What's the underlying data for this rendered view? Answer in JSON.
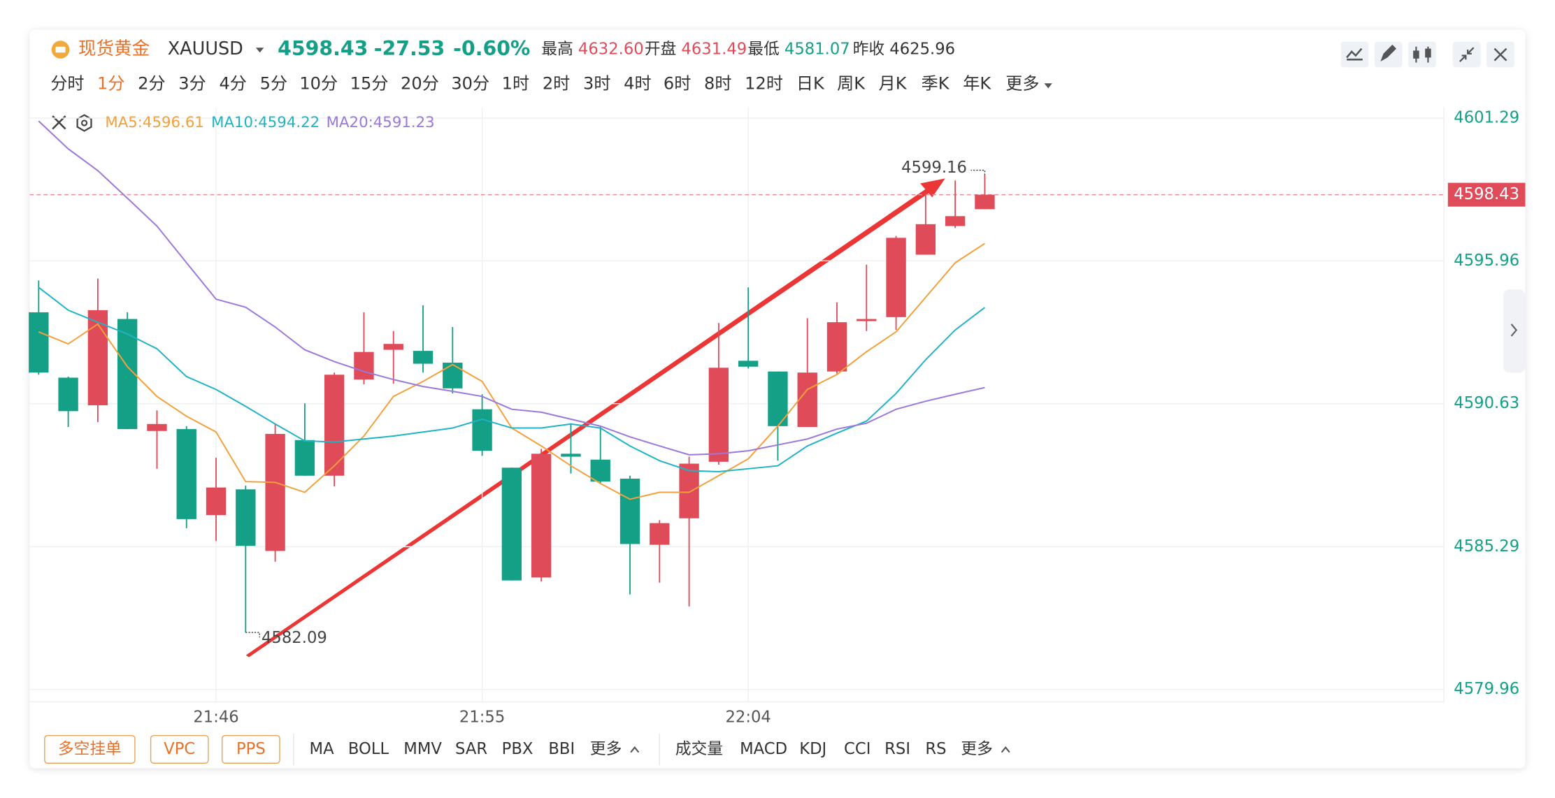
{
  "header": {
    "name": "现货黄金",
    "symbol": "XAUUSD",
    "price": "4598.43",
    "change": "-27.53",
    "change_pct": "-0.60%",
    "stats": [
      {
        "label": "最高",
        "value": "4632.60"
      },
      {
        "label": "开盘",
        "value": "4631.49"
      },
      {
        "label": "最低",
        "value": "4581.07"
      },
      {
        "label": "昨收",
        "value": "4625.96"
      }
    ]
  },
  "timeframes": [
    "分时",
    "1分",
    "2分",
    "3分",
    "4分",
    "5分",
    "10分",
    "15分",
    "20分",
    "30分",
    "1时",
    "2时",
    "3时",
    "4时",
    "6时",
    "8时",
    "12时",
    "日K",
    "周K",
    "月K",
    "季K",
    "年K",
    "更多"
  ],
  "active_timeframe_index": 1,
  "bottom_buttons": [
    "多空挂单",
    "VPC",
    "PPS"
  ],
  "main_indicators": [
    "MA",
    "BOLL",
    "MMV",
    "SAR",
    "PBX",
    "BBI",
    "更多"
  ],
  "sub_indicators": [
    "成交量",
    "MACD",
    "KDJ",
    "CCI",
    "RSI",
    "RS",
    "更多"
  ],
  "chart_data": {
    "type": "candlestick",
    "categories": [
      null,
      null,
      null,
      null,
      null,
      null,
      "21:46",
      null,
      null,
      null,
      null,
      null,
      null,
      null,
      null,
      "21:55",
      null,
      null,
      null,
      null,
      null,
      null,
      null,
      null,
      "22:04",
      null,
      null,
      null,
      null,
      null,
      null,
      null,
      null
    ],
    "open": [
      4594.04,
      4591.6,
      4590.57,
      4593.79,
      4589.61,
      4589.68,
      4586.47,
      4587.43,
      4585.13,
      4589.27,
      4587.94,
      4591.53,
      4592.64,
      4592.6,
      4592.16,
      4590.42,
      4588.24,
      4584.14,
      4588.76,
      4588.54,
      4587.83,
      4585.36,
      4586.35,
      4588.46,
      4592.23,
      4591.83,
      4589.76,
      4591.83,
      4593.71,
      4593.86,
      4596.19,
      4597.26,
      4597.89
    ],
    "high": [
      4595.23,
      4591.64,
      4595.3,
      4594.04,
      4590.38,
      4589.79,
      4588.61,
      4587.57,
      4589.87,
      4590.64,
      4591.79,
      4594.04,
      4593.34,
      4594.3,
      4593.49,
      4590.98,
      4588.24,
      4588.94,
      4589.87,
      4589.79,
      4587.94,
      4586.28,
      4588.65,
      4593.64,
      4594.97,
      4591.83,
      4593.82,
      4594.41,
      4595.82,
      4596.89,
      4598.48,
      4598.96,
      4599.16
    ],
    "low": [
      4591.71,
      4589.76,
      4589.94,
      4589.68,
      4588.2,
      4585.98,
      4585.5,
      4582.09,
      4584.73,
      4587.94,
      4587.54,
      4591.35,
      4591.38,
      4591.79,
      4591.01,
      4588.68,
      4584.03,
      4583.99,
      4588.02,
      4587.65,
      4583.51,
      4583.95,
      4583.06,
      4588.35,
      4591.94,
      4588.5,
      4589.76,
      4591.75,
      4593.34,
      4593.38,
      4596.19,
      4597.19,
      4597.89
    ],
    "close": [
      4591.79,
      4590.35,
      4594.12,
      4589.68,
      4589.87,
      4586.32,
      4587.5,
      4585.32,
      4589.5,
      4587.94,
      4591.71,
      4592.56,
      4592.86,
      4592.12,
      4591.2,
      4588.87,
      4584.03,
      4588.76,
      4588.65,
      4587.72,
      4585.39,
      4586.17,
      4588.39,
      4591.97,
      4592.01,
      4589.79,
      4591.79,
      4593.67,
      4593.79,
      4596.82,
      4597.33,
      4597.63,
      4598.43
    ],
    "up_color": "#e04b5a",
    "down_color": "#14a086",
    "overlays": [
      {
        "legend_label": "MA5:4596.61",
        "color": "#f3a03c",
        "values": [
          4593.31,
          4592.86,
          4593.6,
          4592.01,
          4590.9,
          4590.16,
          4589.57,
          4587.72,
          4587.69,
          4587.32,
          4588.31,
          4589.42,
          4590.9,
          4591.46,
          4592.09,
          4591.46,
          4589.72,
          4589.05,
          4588.31,
          4587.65,
          4587.06,
          4587.32,
          4587.32,
          4587.94,
          4588.57,
          4589.79,
          4591.16,
          4591.72,
          4592.57,
          4593.31,
          4594.6,
          4595.89,
          4596.61
        ]
      },
      {
        "legend_label": "MA10:4594.22",
        "color": "#1fb3c6",
        "values": [
          4594.97,
          4594.12,
          4593.67,
          4593.23,
          4592.68,
          4591.64,
          4591.16,
          4590.53,
          4589.87,
          4589.24,
          4589.2,
          4589.31,
          4589.42,
          4589.57,
          4589.72,
          4590.05,
          4589.72,
          4589.72,
          4589.87,
          4589.72,
          4589.05,
          4588.5,
          4588.13,
          4588.09,
          4588.2,
          4588.31,
          4589.05,
          4589.53,
          4589.98,
          4591.01,
          4592.27,
          4593.38,
          4594.22
        ]
      },
      {
        "legend_label": "MA20:4591.23",
        "color": "#9a78dc",
        "values": [
          4601.18,
          4600.14,
          4599.33,
          4598.3,
          4597.26,
          4595.89,
          4594.53,
          4594.23,
          4593.49,
          4592.64,
          4592.2,
          4591.83,
          4591.53,
          4591.27,
          4591.09,
          4590.9,
          4590.42,
          4590.31,
          4590.05,
          4589.79,
          4589.39,
          4589.05,
          4588.72,
          4588.76,
          4588.87,
          4589.09,
          4589.31,
          4589.68,
          4589.9,
          4590.42,
          4590.72,
          4590.98,
          4591.23
        ]
      }
    ],
    "last_price": 4598.43,
    "ylim": [
      4579.5,
      4601.7
    ],
    "yticks": [
      4601.29,
      4595.96,
      4590.63,
      4585.29,
      4579.96
    ],
    "grid": true
  }
}
